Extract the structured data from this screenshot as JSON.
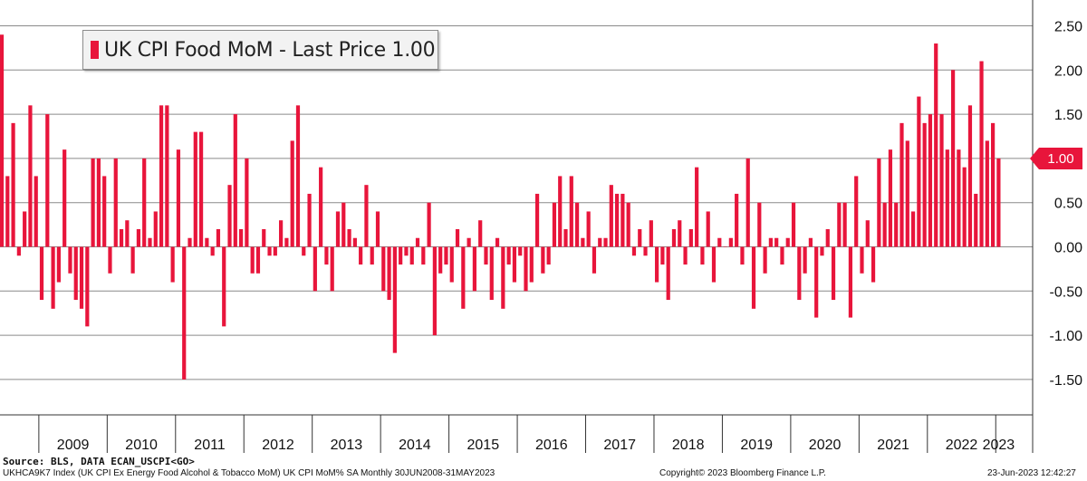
{
  "colors": {
    "bar": "#e8153b",
    "grid": "#8a8a8a",
    "text": "#111111"
  },
  "legend": {
    "label": "UK CPI Food MoM - Last Price 1.00"
  },
  "last_price_tag": "1.00",
  "footer": {
    "source": "Source: BLS, DATA ECAN_USCPI<GO>",
    "description": "UKHCA9K7 Index (UK CPI Ex Energy Food Alcohol & Tobacco MoM) UK CPI MoM% SA  Monthly 30JUN2008-31MAY2023",
    "copyright": "Copyright© 2023 Bloomberg Finance L.P.",
    "timestamp": "23-Jun-2023 12:42:27"
  },
  "chart_data": {
    "type": "bar",
    "start_month": "2008-06",
    "end_month": "2023-05",
    "ylim": [
      -1.8,
      2.5
    ],
    "yticks": [
      2.5,
      2.0,
      1.5,
      1.0,
      0.5,
      0.0,
      -0.5,
      -1.0,
      -1.5
    ],
    "ytick_labels": [
      "2.50",
      "2.00",
      "1.50",
      "1.00",
      "0.50",
      "0.00",
      "-0.50",
      "-1.00",
      "-1.50"
    ],
    "years": [
      "2009",
      "2010",
      "2011",
      "2012",
      "2013",
      "2014",
      "2015",
      "2016",
      "2017",
      "2018",
      "2019",
      "2020",
      "2021",
      "2022",
      "2023"
    ],
    "grid": true,
    "legend_position": "top-left",
    "series": [
      {
        "name": "UK CPI Food MoM",
        "values": [
          2.4,
          0.8,
          1.4,
          -0.1,
          0.4,
          1.6,
          0.8,
          -0.6,
          1.5,
          -0.7,
          -0.4,
          1.1,
          -0.3,
          -0.6,
          -0.7,
          -0.9,
          1.0,
          1.0,
          0.8,
          -0.3,
          1.0,
          0.2,
          0.3,
          -0.3,
          0.2,
          1.0,
          0.1,
          0.4,
          1.6,
          1.6,
          -0.4,
          1.1,
          -1.5,
          0.1,
          1.3,
          1.3,
          0.1,
          -0.1,
          0.2,
          -0.9,
          0.7,
          1.5,
          0.2,
          1.0,
          -0.3,
          -0.3,
          0.2,
          -0.1,
          -0.1,
          0.3,
          0.1,
          1.2,
          1.6,
          -0.1,
          0.6,
          -0.5,
          0.9,
          -0.2,
          -0.5,
          0.4,
          0.5,
          0.2,
          0.1,
          -0.2,
          0.7,
          -0.2,
          0.4,
          -0.5,
          -0.6,
          -1.2,
          -0.2,
          -0.1,
          -0.2,
          0.1,
          -0.2,
          0.5,
          -1.0,
          -0.3,
          -0.2,
          -0.4,
          0.2,
          -0.7,
          0.1,
          -0.5,
          0.3,
          -0.2,
          -0.6,
          0.1,
          -0.7,
          -0.2,
          -0.4,
          -0.1,
          -0.5,
          -0.4,
          0.6,
          -0.3,
          -0.2,
          0.5,
          0.8,
          0.2,
          0.8,
          0.5,
          0.1,
          0.4,
          -0.3,
          0.1,
          0.1,
          0.7,
          0.6,
          0.6,
          0.5,
          -0.1,
          0.2,
          -0.1,
          0.3,
          -0.4,
          -0.2,
          -0.6,
          0.2,
          0.3,
          -0.2,
          0.2,
          0.9,
          -0.2,
          0.4,
          -0.4,
          0.1,
          0.0,
          0.1,
          0.6,
          -0.2,
          1.0,
          -0.7,
          0.5,
          -0.3,
          0.1,
          0.1,
          -0.2,
          0.1,
          0.5,
          -0.6,
          -0.3,
          0.1,
          -0.8,
          -0.1,
          0.2,
          -0.6,
          0.5,
          0.5,
          -0.8,
          0.8,
          -0.3,
          0.3,
          -0.4,
          1.0,
          0.5,
          1.1,
          0.5,
          1.4,
          1.2,
          0.4,
          1.7,
          1.4,
          1.5,
          2.3,
          1.5,
          1.1,
          2.0,
          1.1,
          0.9,
          1.6,
          0.6,
          2.1,
          1.2,
          1.4,
          1.0
        ]
      }
    ]
  }
}
